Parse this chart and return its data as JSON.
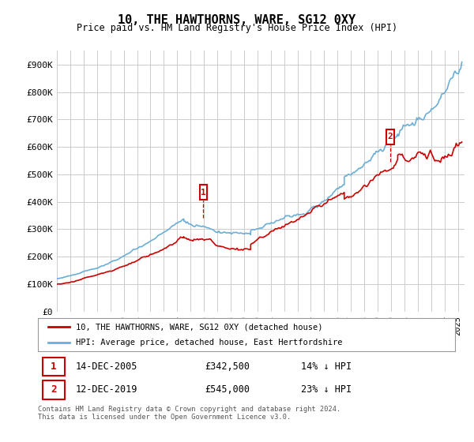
{
  "title": "10, THE HAWTHORNS, WARE, SG12 0XY",
  "subtitle": "Price paid vs. HM Land Registry's House Price Index (HPI)",
  "ylabel_ticks": [
    "£0",
    "£100K",
    "£200K",
    "£300K",
    "£400K",
    "£500K",
    "£600K",
    "£700K",
    "£800K",
    "£900K"
  ],
  "ytick_values": [
    0,
    100000,
    200000,
    300000,
    400000,
    500000,
    600000,
    700000,
    800000,
    900000
  ],
  "ylim": [
    0,
    950000
  ],
  "xlim_start": 1995.0,
  "xlim_end": 2025.5,
  "hpi_color": "#6baed6",
  "price_color": "#cc0000",
  "annotation_color": "#cc0000",
  "legend_label_price": "10, THE HAWTHORNS, WARE, SG12 0XY (detached house)",
  "legend_label_hpi": "HPI: Average price, detached house, East Hertfordshire",
  "marker1_x": 2005.95,
  "marker1_y": 342500,
  "marker1_label": "1",
  "marker2_x": 2019.95,
  "marker2_y": 545000,
  "marker2_label": "2",
  "annotation1_date": "14-DEC-2005",
  "annotation1_price": "£342,500",
  "annotation1_pct": "14% ↓ HPI",
  "annotation2_date": "12-DEC-2019",
  "annotation2_price": "£545,000",
  "annotation2_pct": "23% ↓ HPI",
  "footnote": "Contains HM Land Registry data © Crown copyright and database right 2024.\nThis data is licensed under the Open Government Licence v3.0.",
  "background_color": "#ffffff",
  "grid_color": "#cccccc"
}
